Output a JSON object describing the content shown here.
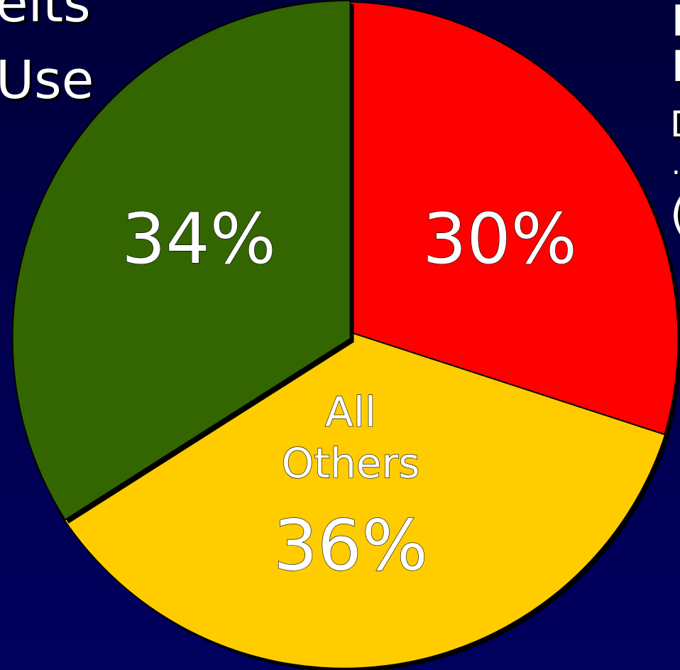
{
  "background_color": "#000050",
  "slide_text": {
    "left_line1": "elts",
    "left_line2": "Use",
    "right_line1": "I",
    "right_line2": "I",
    "right_line3": "D",
    "right_line4": ".",
    "right_line5": "("
  },
  "chart_data": {
    "type": "pie",
    "slices": [
      {
        "value": 30,
        "label": "30%",
        "color": "#ff0000"
      },
      {
        "value": 36,
        "label_lines": [
          "All",
          "Others",
          "36%"
        ],
        "color": "#ffcc00"
      },
      {
        "value": 34,
        "label": "34%",
        "color": "#336600"
      }
    ]
  }
}
